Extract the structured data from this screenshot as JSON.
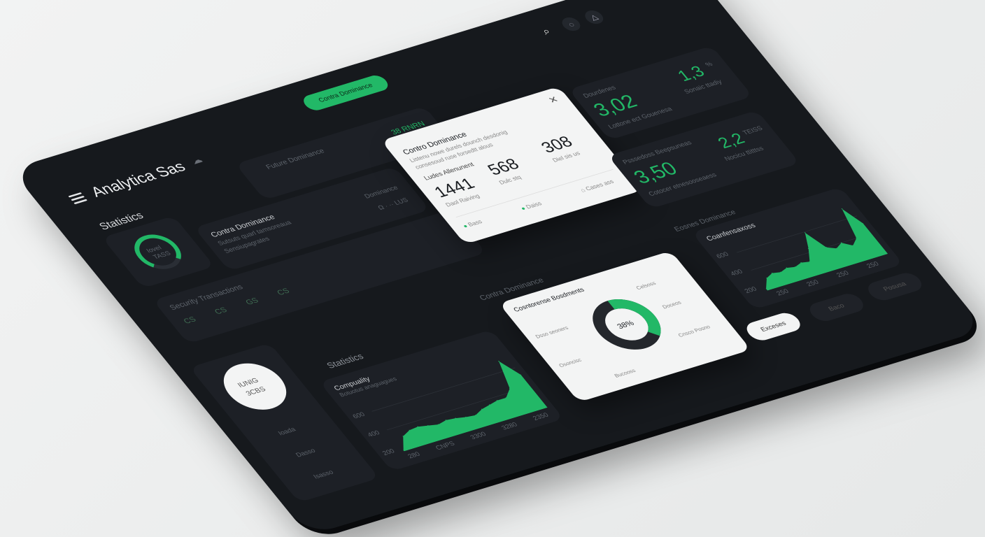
{
  "app": {
    "title": "Analytica Sas",
    "menu_icon": "hamburger-icon",
    "logo_icon": "cloud-icon"
  },
  "header": {
    "cta_label": "Contra Dominance",
    "search_icon": "search-icon",
    "icons": [
      "chat-icon",
      "bell-icon"
    ]
  },
  "colors": {
    "accent": "#22b867",
    "panel": "#16191d",
    "card": "#1d2026",
    "light": "#f3f4f4"
  },
  "stats": {
    "heading": "Statistics",
    "gauge_label_1": "Iovel",
    "gauge_label_2": "TASS",
    "gauge_value": 0.75
  },
  "top_card": {
    "value": "38 RNRN"
  },
  "contra_card": {
    "title": "Contra Dominance",
    "desc_1": "Sutsuts quarl tamsoreaua",
    "desc_2": "Sensiupagrates",
    "right_label": "Dominance",
    "right_meta": "Ω · ·· LUS"
  },
  "security_card": {
    "title": "Security Transactions",
    "badges": [
      "CS",
      "CS",
      "GS",
      "CS"
    ]
  },
  "modal": {
    "section": "Future Dominance",
    "title": "Contro Dominance",
    "desc_1": "Listenu nowe durels dounch desdonig",
    "desc_2": "consesoud ruse forsedtt alous",
    "subheading": "Ludes Allenunent",
    "metrics": [
      {
        "value": "1441",
        "label": "Daol Raiving"
      },
      {
        "value": "568",
        "label": "Dulc stq"
      },
      {
        "value": "308",
        "label": "Diel sis us"
      }
    ],
    "footer": [
      {
        "label": "Bass"
      },
      {
        "label": "Daiss"
      },
      {
        "label": "Cases ass"
      }
    ],
    "close_icon": "close-icon"
  },
  "kpis": [
    {
      "label": "Dourdenes",
      "value": "3,02",
      "sub": "Lottone ect Gouenesa",
      "side_value": "1,3",
      "side_unit": "%",
      "side_sub": "Sonaic ttadiy"
    },
    {
      "label": "Psssedoss Beepsuneas",
      "value": "3,50",
      "sub": "Cotocer etnesooseaess",
      "side_value": "2,2",
      "side_unit": "TEISS",
      "side_sub": "Nocicu ttitttss"
    }
  ],
  "donut": {
    "section": "Contra Dominance",
    "title": "Cosntorense Bosdments",
    "center_label": "38%",
    "fraction": 0.38,
    "labels": [
      "Dsso seoners",
      "Osoncisc",
      "Bucooss",
      "Celsoss",
      "Doceos",
      "Cnsco Posno"
    ]
  },
  "right_chart": {
    "section": "Eosnes Dominance",
    "title": "Coanfensaxoss",
    "ylabels": [
      "600",
      "400",
      "200"
    ],
    "xlabels": [
      "250",
      "250",
      "250",
      "250"
    ]
  },
  "buttons": [
    "Exceses",
    "Baco",
    "Posusa"
  ],
  "bottom": {
    "section": "Statistics",
    "circle_line_1": "IUNIG",
    "circle_line_2": "3CBS",
    "list": [
      "Ioada",
      "Dasso",
      "Isasso"
    ]
  },
  "bottom_chart": {
    "title": "Compuality",
    "subtitle": "Botuotus anaguagues",
    "ylabels": [
      "600",
      "400",
      "200"
    ],
    "xlabels": [
      "280",
      "CNPS",
      "3300",
      "3280",
      "2350"
    ]
  },
  "chart_data": [
    {
      "type": "area",
      "title": "Compuality",
      "y": [
        2,
        30,
        38,
        40,
        36,
        32,
        36,
        34,
        30,
        28,
        36,
        40,
        44,
        44,
        60,
        120,
        80
      ],
      "ylim": [
        0,
        130
      ],
      "color": "#22b867"
    },
    {
      "type": "area",
      "title": "Coanfensaxoss",
      "y": [
        5,
        30,
        38,
        34,
        40,
        36,
        42,
        38,
        70,
        110,
        60,
        50,
        60,
        45,
        60,
        140,
        90
      ],
      "ylim": [
        0,
        150
      ],
      "color": "#22b867"
    },
    {
      "type": "pie",
      "title": "Cosntorense Bosdments",
      "values": [
        38,
        62
      ],
      "center_label": "38%"
    }
  ]
}
